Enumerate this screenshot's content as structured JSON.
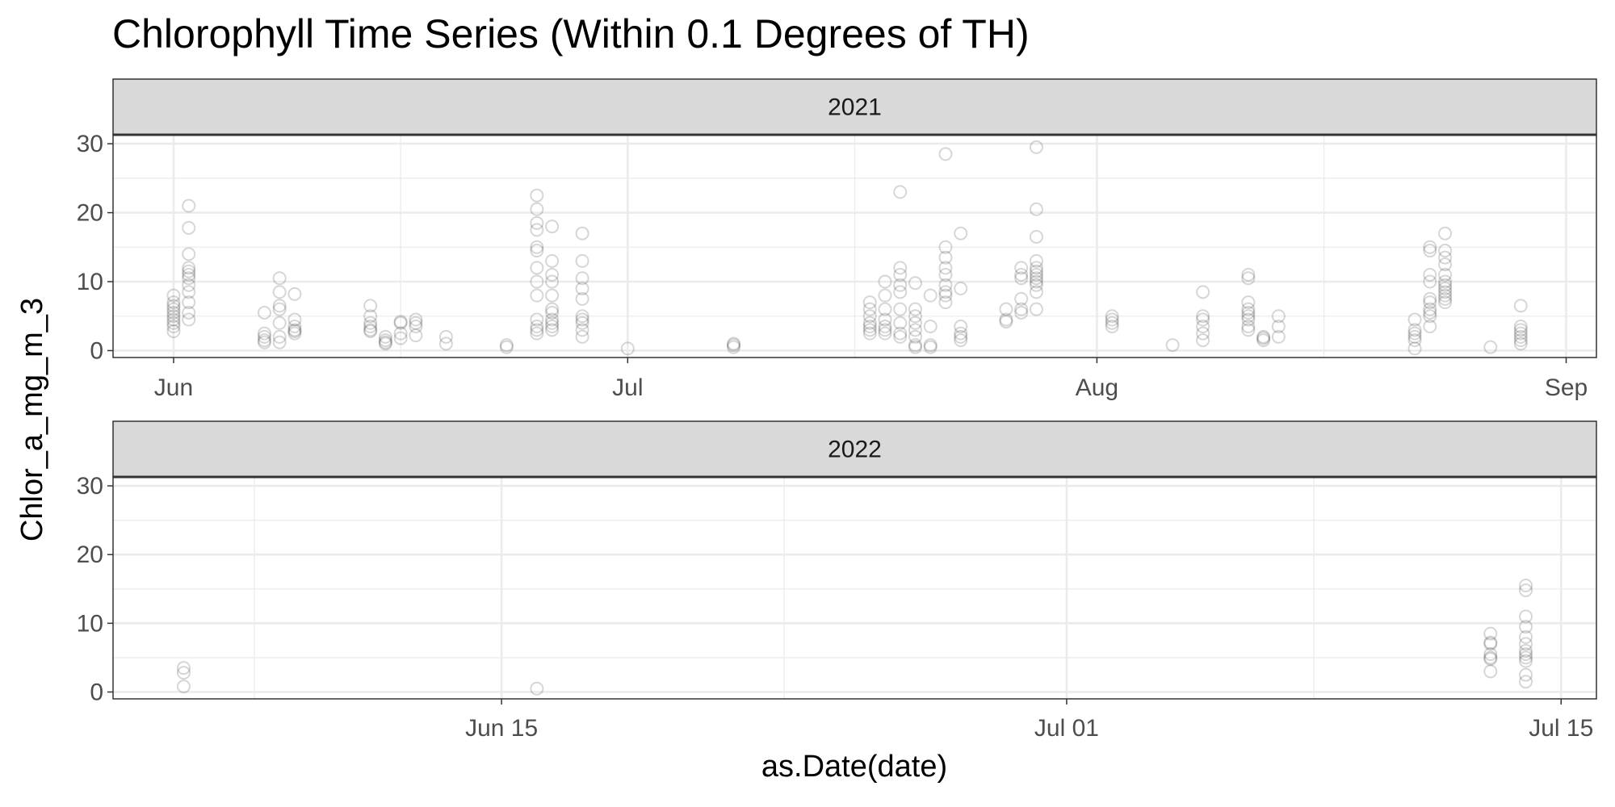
{
  "title": "Chlorophyll Time Series (Within 0.1 Degrees of TH)",
  "x_label": "as.Date(date)",
  "y_label": "Chlor_a_mg_m_3",
  "chart_data": [
    {
      "type": "scatter",
      "facet": "2021",
      "color": "#000000",
      "grid": true,
      "xlim": [
        "2021-05-28",
        "2021-09-03"
      ],
      "xticks": [
        {
          "value": "2021-06-01",
          "label": "Jun"
        },
        {
          "value": "2021-07-01",
          "label": "Jul"
        },
        {
          "value": "2021-08-01",
          "label": "Aug"
        },
        {
          "value": "2021-09-01",
          "label": "Sep"
        }
      ],
      "x_minor_ticks": [
        "2021-06-16",
        "2021-07-16",
        "2021-08-16"
      ],
      "ylim": [
        -1,
        31.3
      ],
      "yticks": [
        0,
        10,
        20,
        30
      ],
      "y_minor_ticks": [
        5,
        15,
        25
      ],
      "x": [
        "2021-06-01",
        "2021-06-01",
        "2021-06-01",
        "2021-06-01",
        "2021-06-01",
        "2021-06-01",
        "2021-06-01",
        "2021-06-01",
        "2021-06-01",
        "2021-06-01",
        "2021-06-02",
        "2021-06-02",
        "2021-06-02",
        "2021-06-02",
        "2021-06-02",
        "2021-06-02",
        "2021-06-02",
        "2021-06-02",
        "2021-06-02",
        "2021-06-02",
        "2021-06-02",
        "2021-06-02",
        "2021-06-07",
        "2021-06-07",
        "2021-06-07",
        "2021-06-07",
        "2021-06-07",
        "2021-06-08",
        "2021-06-08",
        "2021-06-08",
        "2021-06-08",
        "2021-06-08",
        "2021-06-08",
        "2021-06-08",
        "2021-06-09",
        "2021-06-09",
        "2021-06-09",
        "2021-06-09",
        "2021-06-09",
        "2021-06-09",
        "2021-06-14",
        "2021-06-14",
        "2021-06-14",
        "2021-06-14",
        "2021-06-14",
        "2021-06-14",
        "2021-06-15",
        "2021-06-15",
        "2021-06-15",
        "2021-06-15",
        "2021-06-16",
        "2021-06-16",
        "2021-06-16",
        "2021-06-16",
        "2021-06-17",
        "2021-06-17",
        "2021-06-17",
        "2021-06-17",
        "2021-06-19",
        "2021-06-19",
        "2021-06-23",
        "2021-06-23",
        "2021-06-25",
        "2021-06-25",
        "2021-06-25",
        "2021-06-25",
        "2021-06-25",
        "2021-06-25",
        "2021-06-25",
        "2021-06-25",
        "2021-06-25",
        "2021-06-25",
        "2021-06-25",
        "2021-06-25",
        "2021-06-25",
        "2021-06-26",
        "2021-06-26",
        "2021-06-26",
        "2021-06-26",
        "2021-06-26",
        "2021-06-26",
        "2021-06-26",
        "2021-06-26",
        "2021-06-26",
        "2021-06-26",
        "2021-06-26",
        "2021-06-28",
        "2021-06-28",
        "2021-06-28",
        "2021-06-28",
        "2021-06-28",
        "2021-06-28",
        "2021-06-28",
        "2021-06-28",
        "2021-06-28",
        "2021-06-28",
        "2021-07-01",
        "2021-07-08",
        "2021-07-08",
        "2021-07-08",
        "2021-07-17",
        "2021-07-17",
        "2021-07-17",
        "2021-07-17",
        "2021-07-17",
        "2021-07-17",
        "2021-07-17",
        "2021-07-18",
        "2021-07-18",
        "2021-07-18",
        "2021-07-18",
        "2021-07-18",
        "2021-07-18",
        "2021-07-18",
        "2021-07-19",
        "2021-07-19",
        "2021-07-19",
        "2021-07-19",
        "2021-07-19",
        "2021-07-19",
        "2021-07-19",
        "2021-07-19",
        "2021-07-19",
        "2021-07-20",
        "2021-07-20",
        "2021-07-20",
        "2021-07-20",
        "2021-07-20",
        "2021-07-20",
        "2021-07-20",
        "2021-07-20",
        "2021-07-21",
        "2021-07-21",
        "2021-07-21",
        "2021-07-21",
        "2021-07-22",
        "2021-07-22",
        "2021-07-22",
        "2021-07-22",
        "2021-07-22",
        "2021-07-22",
        "2021-07-22",
        "2021-07-22",
        "2021-07-22",
        "2021-07-23",
        "2021-07-23",
        "2021-07-23",
        "2021-07-23",
        "2021-07-23",
        "2021-07-23",
        "2021-07-26",
        "2021-07-26",
        "2021-07-26",
        "2021-07-27",
        "2021-07-27",
        "2021-07-27",
        "2021-07-27",
        "2021-07-27",
        "2021-07-27",
        "2021-07-28",
        "2021-07-28",
        "2021-07-28",
        "2021-07-28",
        "2021-07-28",
        "2021-07-28",
        "2021-07-28",
        "2021-07-28",
        "2021-07-28",
        "2021-07-28",
        "2021-07-28",
        "2021-07-28",
        "2021-08-02",
        "2021-08-02",
        "2021-08-02",
        "2021-08-02",
        "2021-08-06",
        "2021-08-08",
        "2021-08-08",
        "2021-08-08",
        "2021-08-08",
        "2021-08-08",
        "2021-08-08",
        "2021-08-11",
        "2021-08-11",
        "2021-08-11",
        "2021-08-11",
        "2021-08-11",
        "2021-08-11",
        "2021-08-11",
        "2021-08-11",
        "2021-08-11",
        "2021-08-12",
        "2021-08-12",
        "2021-08-12",
        "2021-08-13",
        "2021-08-13",
        "2021-08-13",
        "2021-08-22",
        "2021-08-22",
        "2021-08-22",
        "2021-08-22",
        "2021-08-22",
        "2021-08-22",
        "2021-08-23",
        "2021-08-23",
        "2021-08-23",
        "2021-08-23",
        "2021-08-23",
        "2021-08-23",
        "2021-08-23",
        "2021-08-23",
        "2021-08-23",
        "2021-08-23",
        "2021-08-24",
        "2021-08-24",
        "2021-08-24",
        "2021-08-24",
        "2021-08-24",
        "2021-08-24",
        "2021-08-24",
        "2021-08-24",
        "2021-08-24",
        "2021-08-24",
        "2021-08-24",
        "2021-08-24",
        "2021-08-27",
        "2021-08-29",
        "2021-08-29",
        "2021-08-29",
        "2021-08-29",
        "2021-08-29",
        "2021-08-29",
        "2021-08-29"
      ],
      "values": [
        8,
        7,
        6,
        5.5,
        5,
        4.5,
        3.5,
        2.8,
        4,
        6.5,
        21,
        17.8,
        14,
        12,
        11,
        10.5,
        9.5,
        8.5,
        7,
        5.5,
        4.5,
        11.5,
        5.5,
        2.5,
        1.5,
        1.2,
        2,
        10.5,
        8.5,
        6.5,
        4,
        2,
        1.2,
        6,
        8.2,
        4.5,
        3.5,
        2.8,
        2.5,
        3,
        6.5,
        5,
        4,
        3.5,
        2.8,
        3,
        2,
        1,
        1.2,
        1.5,
        4.2,
        2.5,
        1.8,
        4,
        4.5,
        4,
        3.5,
        2.2,
        2,
        1,
        0.8,
        0.5,
        22.5,
        20.5,
        18.5,
        17.5,
        15,
        14.5,
        12,
        10,
        8,
        4.5,
        3.5,
        3,
        2.5,
        18,
        13,
        11,
        10,
        8,
        6,
        5.5,
        4.5,
        4,
        3.5,
        3,
        17,
        13,
        10.5,
        9,
        7.5,
        5,
        4.5,
        4,
        3,
        2,
        0.3,
        1,
        0.5,
        0.8,
        7,
        6,
        5,
        4,
        3.5,
        3,
        2.5,
        10,
        8,
        6,
        4.5,
        3.5,
        3,
        2.5,
        23,
        12,
        11,
        9.5,
        8.5,
        6,
        4,
        2.5,
        2,
        9.8,
        6,
        5,
        4,
        3,
        2,
        0.8,
        0.5,
        8,
        3.5,
        0.8,
        0.5,
        28.5,
        15,
        13.5,
        12,
        11,
        9.5,
        8.5,
        8,
        7,
        17,
        9,
        3.5,
        2.5,
        2,
        1.5,
        6,
        4.5,
        4.2,
        12,
        11,
        10.5,
        7.5,
        6,
        5.5,
        29.5,
        20.5,
        16.5,
        13,
        12,
        11.5,
        11,
        10.5,
        10,
        9.5,
        8.5,
        6,
        5,
        4.5,
        4,
        3.5,
        0.8,
        8.5,
        5,
        4.5,
        3.5,
        2.5,
        1.5,
        11,
        10.5,
        7,
        6,
        5.5,
        5,
        4.5,
        3.5,
        3,
        2,
        1.5,
        1.8,
        5,
        3.5,
        2,
        4.5,
        3,
        2.5,
        2,
        1.5,
        0.3,
        15,
        14.5,
        11,
        10,
        7.5,
        7,
        6,
        5.5,
        5,
        3.5,
        17,
        14.5,
        13.5,
        12.5,
        11,
        10,
        9.5,
        9,
        8.5,
        8,
        7.5,
        7,
        0.5,
        6.5,
        3.5,
        3,
        2.5,
        2,
        1.5,
        1
      ]
    },
    {
      "type": "scatter",
      "facet": "2022",
      "color": "#000000",
      "grid": true,
      "xlim": [
        "2022-06-04",
        "2022-07-16"
      ],
      "xticks": [
        {
          "value": "2022-06-15",
          "label": "Jun 15"
        },
        {
          "value": "2022-07-01",
          "label": "Jul 01"
        },
        {
          "value": "2022-07-15",
          "label": "Jul 15"
        }
      ],
      "x_minor_ticks": [
        "2022-06-08",
        "2022-06-23",
        "2022-07-08"
      ],
      "ylim": [
        -1,
        31.3
      ],
      "yticks": [
        0,
        10,
        20,
        30
      ],
      "y_minor_ticks": [
        5,
        15,
        25
      ],
      "x": [
        "2022-06-06",
        "2022-06-06",
        "2022-06-06",
        "2022-06-16",
        "2022-07-13",
        "2022-07-13",
        "2022-07-13",
        "2022-07-13",
        "2022-07-13",
        "2022-07-13",
        "2022-07-13",
        "2022-07-14",
        "2022-07-14",
        "2022-07-14",
        "2022-07-14",
        "2022-07-14",
        "2022-07-14",
        "2022-07-14",
        "2022-07-14",
        "2022-07-14",
        "2022-07-14",
        "2022-07-14",
        "2022-07-14"
      ],
      "values": [
        3.5,
        2.8,
        0.8,
        0.5,
        8.5,
        7,
        5.5,
        5,
        3,
        7.2,
        4.8,
        15.5,
        14.8,
        11,
        9.5,
        8,
        7,
        6,
        5,
        4.5,
        2.5,
        1.5,
        5.5
      ]
    }
  ]
}
